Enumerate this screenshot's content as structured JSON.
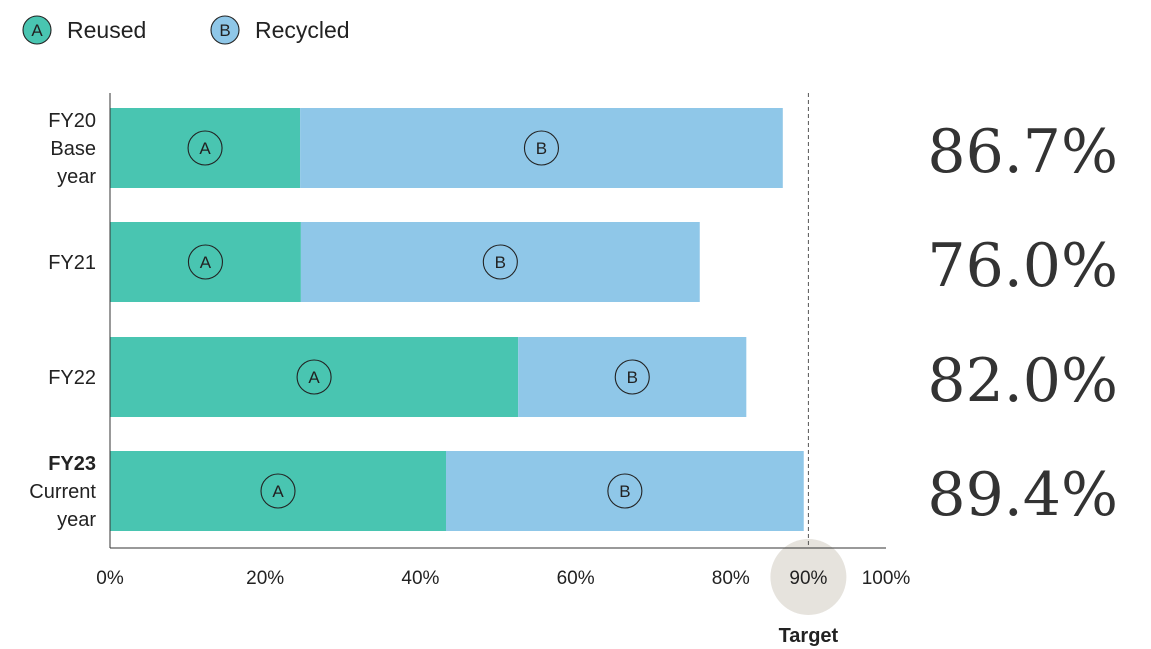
{
  "legend": [
    {
      "key": "reused",
      "badge": "A",
      "label": "Reused",
      "color": "#49c5b1"
    },
    {
      "key": "recycled",
      "badge": "B",
      "label": "Recycled",
      "color": "#8fc7e8"
    }
  ],
  "chart_data": {
    "type": "bar",
    "orientation": "horizontal",
    "stacked": true,
    "categories": [
      {
        "lines": [
          "FY20",
          "Base",
          "year"
        ],
        "bold_first": false
      },
      {
        "lines": [
          "FY21"
        ],
        "bold_first": false
      },
      {
        "lines": [
          "FY22"
        ],
        "bold_first": false
      },
      {
        "lines": [
          "FY23",
          "Current",
          "year"
        ],
        "bold_first": true
      }
    ],
    "series": [
      {
        "name": "Reused",
        "badge": "A",
        "color": "#49c5b1",
        "values": [
          24.5,
          24.6,
          52.6,
          43.3
        ]
      },
      {
        "name": "Recycled",
        "badge": "B",
        "color": "#8fc7e8",
        "values": [
          62.2,
          51.4,
          29.4,
          46.1
        ]
      }
    ],
    "totals": [
      "86.7%",
      "76.0%",
      "82.0%",
      "89.4%"
    ],
    "xlim": [
      0,
      100
    ],
    "xticks": [
      "0%",
      "20%",
      "40%",
      "60%",
      "80%",
      "100%"
    ],
    "xtick_values": [
      0,
      20,
      40,
      60,
      80,
      100
    ],
    "target": {
      "value": 90,
      "label": "90%",
      "caption": "Target"
    },
    "grid": false
  }
}
